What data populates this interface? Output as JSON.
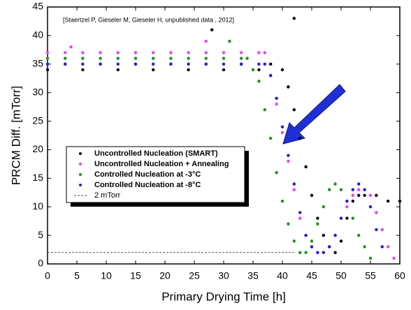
{
  "chart_data": {
    "type": "scatter",
    "annotation": "[Staertzel P, Gieseler M, Gieseler H, unpublished data , 2012]",
    "x_label": "Primary Drying Time [h]",
    "y_label": "PRCM Diff. [mTorr]",
    "xlim": [
      0,
      60
    ],
    "ylim": [
      0,
      45
    ],
    "xticks": [
      0,
      5,
      10,
      15,
      20,
      25,
      30,
      35,
      40,
      45,
      50,
      55,
      60
    ],
    "yticks": [
      0,
      5,
      10,
      15,
      20,
      25,
      30,
      35,
      40,
      45
    ],
    "reference_line": {
      "y": 2,
      "x_end": 42,
      "label": "2 mTorr",
      "color": "#555555"
    },
    "series": [
      {
        "name": "Uncontrolled Nucleation (SMART)",
        "color": "#000000",
        "x": [
          0,
          3,
          6,
          9,
          12,
          15,
          18,
          21,
          24,
          27,
          30,
          33,
          36,
          38,
          40,
          41,
          42,
          43,
          44,
          45,
          46,
          47,
          48,
          49,
          50,
          51,
          52,
          53,
          54,
          56,
          58,
          60,
          28,
          42
        ],
        "values": [
          34,
          35,
          34,
          35,
          34,
          35,
          34,
          35,
          34,
          35,
          34,
          35,
          34,
          35,
          34,
          31,
          27,
          22,
          17,
          12,
          8,
          5,
          3,
          2,
          4,
          8,
          11,
          12,
          12,
          12,
          11,
          11,
          41,
          43
        ]
      },
      {
        "name": "Uncontrolled Nucleation + Annealing",
        "color": "#ff33ff",
        "x": [
          0,
          3,
          6,
          9,
          12,
          15,
          18,
          21,
          24,
          27,
          30,
          33,
          36,
          37,
          38,
          39,
          40,
          41,
          42,
          43,
          44,
          45,
          46,
          47,
          48,
          49,
          50,
          51,
          52,
          53,
          54,
          55,
          56,
          57,
          58,
          59,
          4,
          27
        ],
        "values": [
          37,
          37,
          37,
          37,
          37,
          37,
          37,
          37,
          37,
          37,
          37,
          37,
          37,
          37,
          33,
          28,
          23,
          18,
          13,
          8,
          5,
          3,
          2,
          2,
          3,
          5,
          8,
          10,
          12,
          13,
          13,
          12,
          9,
          6,
          3,
          1,
          38,
          39
        ]
      },
      {
        "name": "Controlled Nucleation at -3°C",
        "color": "#119911",
        "x": [
          0,
          3,
          6,
          9,
          12,
          15,
          18,
          21,
          24,
          27,
          30,
          33,
          34,
          35,
          36,
          37,
          38,
          39,
          40,
          41,
          42,
          43,
          44,
          45,
          46,
          47,
          48,
          49,
          50,
          51,
          52,
          53,
          54,
          55,
          31
        ],
        "values": [
          36,
          36,
          36,
          36,
          36,
          36,
          36,
          36,
          36,
          36,
          36,
          36,
          36,
          34,
          32,
          27,
          22,
          16,
          11,
          7,
          4,
          2,
          2,
          4,
          7,
          10,
          13,
          14,
          13,
          11,
          8,
          5,
          3,
          1,
          39
        ]
      },
      {
        "name": "Controlled Nucleation at -8°C",
        "color": "#1a1aff",
        "x": [
          0,
          3,
          6,
          9,
          12,
          15,
          18,
          21,
          24,
          27,
          30,
          33,
          36,
          37,
          38,
          39,
          40,
          41,
          42,
          43,
          44,
          45,
          46,
          47,
          48,
          49,
          50,
          51,
          52,
          53,
          54,
          55,
          56,
          57
        ],
        "values": [
          35,
          35,
          35,
          35,
          35,
          35,
          35,
          35,
          35,
          35,
          35,
          35,
          35,
          35,
          33,
          29,
          24,
          19,
          14,
          9,
          5,
          3,
          2,
          2,
          3,
          5,
          8,
          11,
          13,
          14,
          13,
          10,
          6,
          3
        ]
      }
    ]
  }
}
